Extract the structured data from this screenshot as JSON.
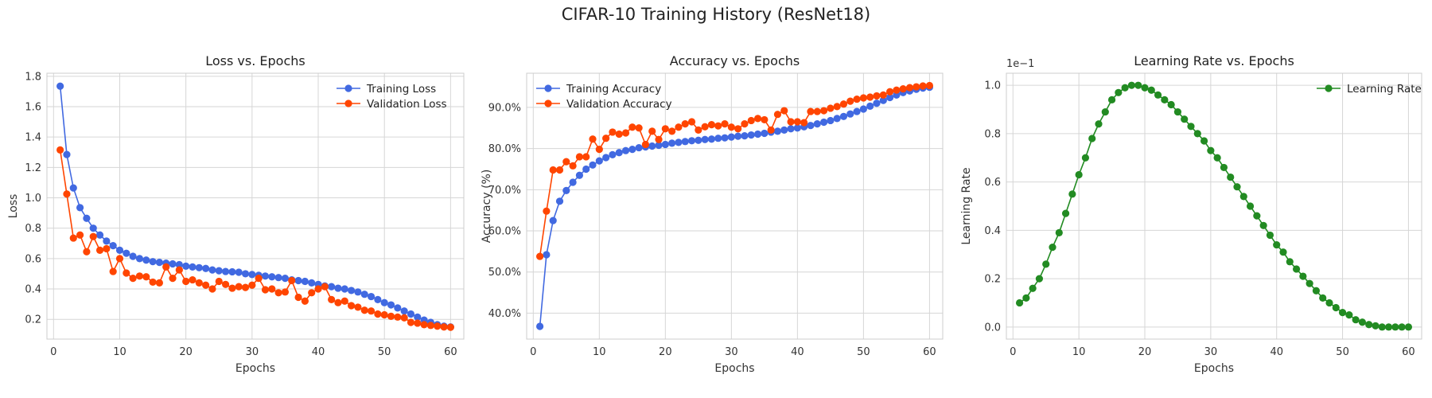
{
  "figure": {
    "suptitle": "CIFAR-10 Training History (ResNet18)"
  },
  "chart_data": [
    {
      "type": "line",
      "title": "Loss vs. Epochs",
      "xlabel": "Epochs",
      "ylabel": "Loss",
      "xlim": [
        -1,
        62
      ],
      "ylim": [
        0.07,
        1.82
      ],
      "xticks": [
        0,
        10,
        20,
        30,
        40,
        50,
        60
      ],
      "yticks": [
        0.2,
        0.4,
        0.6,
        0.8,
        1.0,
        1.2,
        1.4,
        1.6,
        1.8
      ],
      "ytick_labels": [
        "0.2",
        "0.4",
        "0.6",
        "0.8",
        "1.0",
        "1.2",
        "1.4",
        "1.6",
        "1.8"
      ],
      "grid": true,
      "legend": "top-right",
      "x": [
        1,
        2,
        3,
        4,
        5,
        6,
        7,
        8,
        9,
        10,
        11,
        12,
        13,
        14,
        15,
        16,
        17,
        18,
        19,
        20,
        21,
        22,
        23,
        24,
        25,
        26,
        27,
        28,
        29,
        30,
        31,
        32,
        33,
        34,
        35,
        36,
        37,
        38,
        39,
        40,
        41,
        42,
        43,
        44,
        45,
        46,
        47,
        48,
        49,
        50,
        51,
        52,
        53,
        54,
        55,
        56,
        57,
        58,
        59,
        60
      ],
      "series": [
        {
          "name": "Training Loss",
          "color": "#4169e1",
          "values": [
            1.735,
            1.285,
            1.065,
            0.935,
            0.865,
            0.8,
            0.755,
            0.715,
            0.685,
            0.655,
            0.635,
            0.615,
            0.6,
            0.59,
            0.58,
            0.575,
            0.57,
            0.565,
            0.56,
            0.55,
            0.545,
            0.54,
            0.535,
            0.525,
            0.52,
            0.515,
            0.513,
            0.51,
            0.5,
            0.495,
            0.49,
            0.485,
            0.48,
            0.475,
            0.47,
            0.46,
            0.455,
            0.45,
            0.44,
            0.43,
            0.42,
            0.415,
            0.405,
            0.4,
            0.39,
            0.38,
            0.365,
            0.35,
            0.33,
            0.31,
            0.295,
            0.275,
            0.255,
            0.235,
            0.215,
            0.195,
            0.18,
            0.165,
            0.155,
            0.15
          ]
        },
        {
          "name": "Validation Loss",
          "color": "#ff4500",
          "values": [
            1.315,
            1.025,
            0.735,
            0.755,
            0.645,
            0.745,
            0.655,
            0.665,
            0.515,
            0.6,
            0.505,
            0.47,
            0.485,
            0.48,
            0.445,
            0.44,
            0.545,
            0.47,
            0.525,
            0.45,
            0.46,
            0.44,
            0.425,
            0.4,
            0.45,
            0.43,
            0.405,
            0.415,
            0.41,
            0.425,
            0.47,
            0.395,
            0.4,
            0.375,
            0.38,
            0.455,
            0.345,
            0.32,
            0.375,
            0.4,
            0.415,
            0.33,
            0.31,
            0.32,
            0.29,
            0.28,
            0.26,
            0.255,
            0.235,
            0.23,
            0.22,
            0.215,
            0.21,
            0.18,
            0.175,
            0.165,
            0.16,
            0.155,
            0.15,
            0.148
          ]
        }
      ]
    },
    {
      "type": "line",
      "title": "Accuracy vs. Epochs",
      "xlabel": "Epochs",
      "ylabel": "Accuracy (%)",
      "xlim": [
        -1,
        62
      ],
      "ylim": [
        33.7,
        98.3
      ],
      "xticks": [
        0,
        10,
        20,
        30,
        40,
        50,
        60
      ],
      "yticks": [
        40,
        50,
        60,
        70,
        80,
        90
      ],
      "ytick_labels": [
        "40.0%",
        "50.0%",
        "60.0%",
        "70.0%",
        "80.0%",
        "90.0%"
      ],
      "grid": true,
      "legend": "top-left",
      "x": [
        1,
        2,
        3,
        4,
        5,
        6,
        7,
        8,
        9,
        10,
        11,
        12,
        13,
        14,
        15,
        16,
        17,
        18,
        19,
        20,
        21,
        22,
        23,
        24,
        25,
        26,
        27,
        28,
        29,
        30,
        31,
        32,
        33,
        34,
        35,
        36,
        37,
        38,
        39,
        40,
        41,
        42,
        43,
        44,
        45,
        46,
        47,
        48,
        49,
        50,
        51,
        52,
        53,
        54,
        55,
        56,
        57,
        58,
        59,
        60
      ],
      "series": [
        {
          "name": "Training Accuracy",
          "color": "#4169e1",
          "values": [
            36.8,
            54.2,
            62.5,
            67.2,
            69.8,
            71.8,
            73.5,
            75.0,
            76.0,
            77.0,
            77.8,
            78.5,
            79.0,
            79.5,
            79.8,
            80.2,
            80.4,
            80.6,
            80.8,
            81.0,
            81.3,
            81.5,
            81.7,
            81.9,
            82.0,
            82.2,
            82.3,
            82.5,
            82.6,
            82.8,
            83.0,
            83.1,
            83.3,
            83.5,
            83.7,
            84.0,
            84.2,
            84.5,
            84.8,
            85.0,
            85.3,
            85.6,
            86.0,
            86.4,
            86.8,
            87.3,
            87.8,
            88.4,
            89.0,
            89.6,
            90.3,
            91.0,
            91.7,
            92.4,
            93.0,
            93.6,
            94.0,
            94.4,
            94.7,
            94.9
          ]
        },
        {
          "name": "Validation Accuracy",
          "color": "#ff4500",
          "values": [
            53.8,
            64.8,
            74.8,
            74.8,
            76.8,
            75.8,
            78.0,
            78.0,
            82.3,
            79.8,
            82.5,
            84.0,
            83.5,
            83.8,
            85.2,
            85.0,
            81.0,
            84.2,
            82.2,
            84.8,
            84.2,
            85.2,
            86.0,
            86.5,
            84.5,
            85.3,
            85.8,
            85.5,
            86.0,
            85.2,
            84.8,
            86.0,
            86.8,
            87.3,
            87.0,
            84.5,
            88.3,
            89.2,
            86.5,
            86.5,
            86.3,
            89.0,
            89.0,
            89.2,
            89.8,
            90.2,
            90.8,
            91.5,
            92.0,
            92.3,
            92.5,
            92.8,
            93.0,
            93.8,
            94.2,
            94.5,
            94.8,
            95.0,
            95.2,
            95.3
          ]
        }
      ]
    },
    {
      "type": "line",
      "title": "Learning Rate vs. Epochs",
      "xlabel": "Epochs",
      "ylabel": "Learning Rate",
      "scale_label": "1e−1",
      "xlim": [
        -1,
        62
      ],
      "ylim": [
        -0.05,
        1.05
      ],
      "xticks": [
        0,
        10,
        20,
        30,
        40,
        50,
        60
      ],
      "yticks": [
        0.0,
        0.2,
        0.4,
        0.6,
        0.8,
        1.0
      ],
      "ytick_labels": [
        "0.0",
        "0.2",
        "0.4",
        "0.6",
        "0.8",
        "1.0"
      ],
      "grid": true,
      "legend": "top-right",
      "x": [
        1,
        2,
        3,
        4,
        5,
        6,
        7,
        8,
        9,
        10,
        11,
        12,
        13,
        14,
        15,
        16,
        17,
        18,
        19,
        20,
        21,
        22,
        23,
        24,
        25,
        26,
        27,
        28,
        29,
        30,
        31,
        32,
        33,
        34,
        35,
        36,
        37,
        38,
        39,
        40,
        41,
        42,
        43,
        44,
        45,
        46,
        47,
        48,
        49,
        50,
        51,
        52,
        53,
        54,
        55,
        56,
        57,
        58,
        59,
        60
      ],
      "series": [
        {
          "name": "Learning Rate",
          "color": "#228b22",
          "values": [
            0.1,
            0.12,
            0.16,
            0.2,
            0.26,
            0.33,
            0.39,
            0.47,
            0.55,
            0.63,
            0.7,
            0.78,
            0.84,
            0.89,
            0.94,
            0.97,
            0.99,
            1.0,
            1.0,
            0.99,
            0.98,
            0.96,
            0.94,
            0.92,
            0.89,
            0.86,
            0.83,
            0.8,
            0.77,
            0.73,
            0.7,
            0.66,
            0.62,
            0.58,
            0.54,
            0.5,
            0.46,
            0.42,
            0.38,
            0.34,
            0.31,
            0.27,
            0.24,
            0.21,
            0.18,
            0.15,
            0.12,
            0.1,
            0.08,
            0.06,
            0.05,
            0.03,
            0.02,
            0.01,
            0.005,
            0.0,
            0.0,
            0.0,
            0.0,
            0.0
          ]
        }
      ]
    }
  ]
}
